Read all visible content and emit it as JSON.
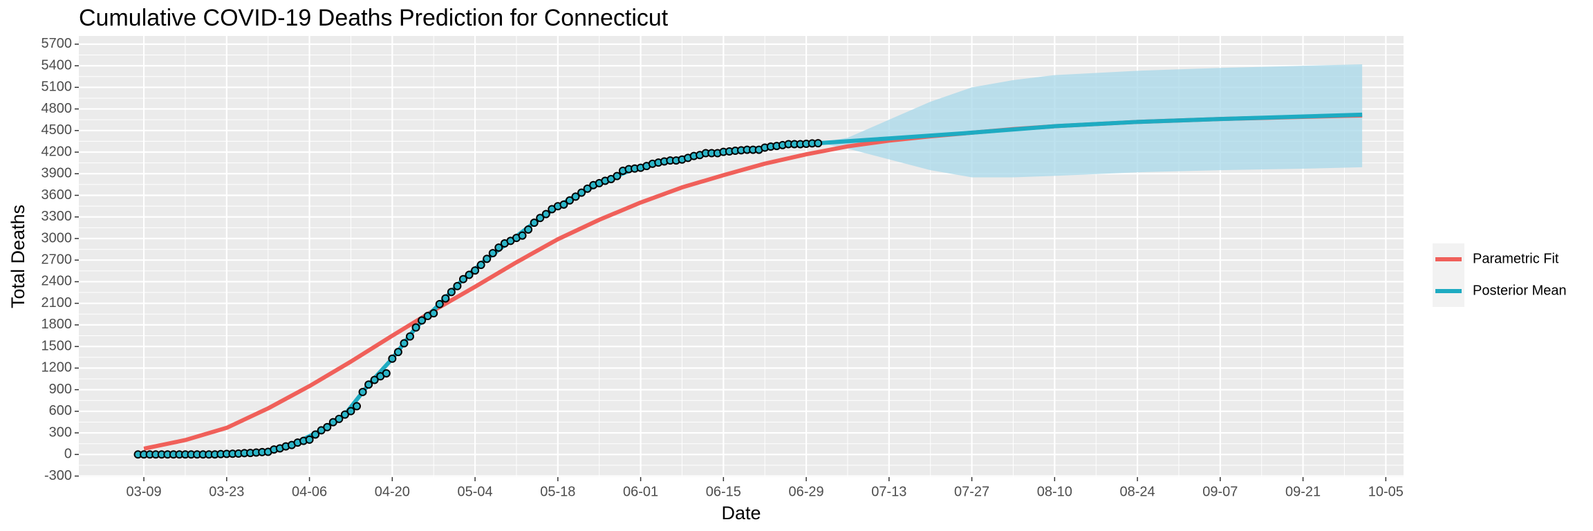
{
  "chart_data": {
    "type": "line",
    "title": "Cumulative COVID-19 Deaths Prediction for Connecticut",
    "x_label": "Date",
    "y_label": "Total Deaths",
    "xlim": [
      "02-27",
      "10-08"
    ],
    "ylim": [
      -314,
      5814
    ],
    "xticks": [
      "03-09",
      "03-23",
      "04-06",
      "04-20",
      "05-04",
      "05-18",
      "06-01",
      "06-15",
      "06-29",
      "07-13",
      "07-27",
      "08-10",
      "08-24",
      "09-07",
      "09-21",
      "10-05"
    ],
    "yticks": [
      -300,
      0,
      300,
      600,
      900,
      1200,
      1500,
      1800,
      2100,
      2400,
      2700,
      3000,
      3300,
      3600,
      3900,
      4200,
      4500,
      4800,
      5100,
      5400,
      5700
    ],
    "grid": true,
    "legend": "right",
    "series": [
      {
        "name": "Parametric Fit",
        "color": "#F0605A",
        "x": [
          "03-09",
          "03-16",
          "03-23",
          "03-30",
          "04-06",
          "04-13",
          "04-20",
          "04-27",
          "05-04",
          "05-11",
          "05-18",
          "05-25",
          "06-01",
          "06-08",
          "06-15",
          "06-22",
          "06-29",
          "07-06",
          "07-13",
          "07-20",
          "07-27",
          "08-03",
          "08-10",
          "08-17",
          "08-24",
          "08-31",
          "09-07",
          "09-14",
          "09-21",
          "09-28",
          "10-01"
        ],
        "values": [
          80,
          200,
          370,
          640,
          950,
          1290,
          1650,
          2000,
          2330,
          2670,
          2990,
          3260,
          3500,
          3710,
          3880,
          4040,
          4170,
          4280,
          4360,
          4420,
          4470,
          4520,
          4560,
          4590,
          4620,
          4640,
          4660,
          4675,
          4690,
          4705,
          4710
        ]
      },
      {
        "name": "Posterior Mean",
        "color": "#1EABC2",
        "x": [
          "03-08",
          "03-15",
          "03-22",
          "03-29",
          "04-03",
          "04-08",
          "04-12",
          "04-16",
          "04-20",
          "04-24",
          "04-28",
          "05-02",
          "05-06",
          "05-10",
          "05-14",
          "05-18",
          "05-22",
          "05-26",
          "05-31",
          "06-06",
          "06-12",
          "06-18",
          "06-24",
          "07-01",
          "07-13",
          "07-27",
          "08-10",
          "08-24",
          "09-07",
          "09-21",
          "10-01"
        ],
        "values": [
          0,
          0,
          5,
          33,
          131,
          335,
          554,
          971,
          1331,
          1764,
          2089,
          2436,
          2718,
          2967,
          3219,
          3449,
          3637,
          3802,
          3972,
          4084,
          4186,
          4226,
          4286,
          4324,
          4390,
          4470,
          4560,
          4620,
          4660,
          4695,
          4720
        ]
      }
    ],
    "band": {
      "color": "#A8D8EA",
      "x": [
        "07-01",
        "07-06",
        "07-13",
        "07-20",
        "07-27",
        "08-03",
        "08-10",
        "08-24",
        "09-07",
        "09-21",
        "10-01"
      ],
      "lower": [
        4330,
        4250,
        4100,
        3950,
        3850,
        3850,
        3870,
        3920,
        3950,
        3970,
        3990
      ],
      "upper": [
        4330,
        4400,
        4650,
        4900,
        5100,
        5200,
        5270,
        5330,
        5370,
        5400,
        5420
      ]
    },
    "points": {
      "fill": "#2BB5C8",
      "x": [
        "03-08",
        "03-09",
        "03-10",
        "03-11",
        "03-12",
        "03-13",
        "03-14",
        "03-15",
        "03-16",
        "03-17",
        "03-18",
        "03-19",
        "03-20",
        "03-21",
        "03-22",
        "03-23",
        "03-24",
        "03-25",
        "03-26",
        "03-27",
        "03-28",
        "03-29",
        "03-30",
        "03-31",
        "04-01",
        "04-02",
        "04-03",
        "04-04",
        "04-05",
        "04-06",
        "04-07",
        "04-08",
        "04-09",
        "04-10",
        "04-11",
        "04-12",
        "04-13",
        "04-14",
        "04-15",
        "04-16",
        "04-17",
        "04-18",
        "04-19",
        "04-20",
        "04-21",
        "04-22",
        "04-23",
        "04-24",
        "04-25",
        "04-26",
        "04-27",
        "04-28",
        "04-29",
        "04-30",
        "05-01",
        "05-02",
        "05-03",
        "05-04",
        "05-05",
        "05-06",
        "05-07",
        "05-08",
        "05-09",
        "05-10",
        "05-11",
        "05-12",
        "05-13",
        "05-14",
        "05-15",
        "05-16",
        "05-17",
        "05-18",
        "05-19",
        "05-20",
        "05-21",
        "05-22",
        "05-23",
        "05-24",
        "05-25",
        "05-26",
        "05-27",
        "05-28",
        "05-29",
        "05-30",
        "05-31",
        "06-01",
        "06-02",
        "06-03",
        "06-04",
        "06-05",
        "06-06",
        "06-07",
        "06-08",
        "06-09",
        "06-10",
        "06-11",
        "06-12",
        "06-13",
        "06-14",
        "06-15",
        "06-16",
        "06-17",
        "06-18",
        "06-19",
        "06-20",
        "06-21",
        "06-22",
        "06-23",
        "06-24",
        "06-25",
        "06-26",
        "06-27",
        "06-28",
        "06-29",
        "06-30",
        "07-01"
      ],
      "values": [
        0,
        0,
        0,
        0,
        0,
        0,
        0,
        0,
        0,
        0,
        0,
        0,
        0,
        1,
        5,
        8,
        10,
        12,
        19,
        21,
        27,
        33,
        36,
        69,
        85,
        112,
        131,
        165,
        189,
        206,
        277,
        335,
        380,
        448,
        494,
        554,
        602,
        671,
        868,
        971,
        1036,
        1086,
        1127,
        1331,
        1423,
        1544,
        1639,
        1764,
        1862,
        1924,
        1961,
        2089,
        2168,
        2257,
        2339,
        2436,
        2495,
        2556,
        2633,
        2718,
        2797,
        2874,
        2932,
        2967,
        3008,
        3041,
        3125,
        3219,
        3285,
        3339,
        3408,
        3449,
        3472,
        3529,
        3582,
        3637,
        3693,
        3742,
        3769,
        3802,
        3826,
        3868,
        3941,
        3964,
        3972,
        3983,
        4007,
        4038,
        4055,
        4071,
        4084,
        4084,
        4097,
        4120,
        4146,
        4159,
        4186,
        4186,
        4186,
        4204,
        4210,
        4219,
        4226,
        4233,
        4233,
        4233,
        4263,
        4277,
        4286,
        4298,
        4311,
        4311,
        4311,
        4316,
        4322,
        4324
      ]
    }
  }
}
